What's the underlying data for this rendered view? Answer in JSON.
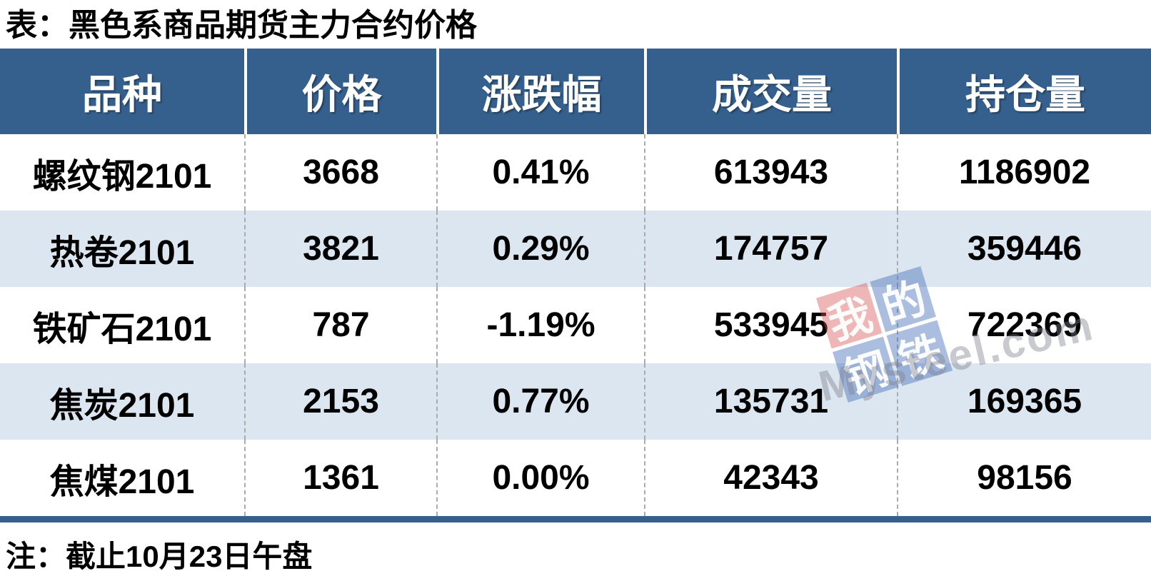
{
  "title": "表：黑色系商品期货主力合约价格",
  "note": "注：截止10月23日午盘",
  "colors": {
    "header_bg": "#35608E",
    "row_alt_bg": "#DCE6F1",
    "up_red": "#C00000",
    "down_green": "#548235",
    "divider_dash": "#ABABAB",
    "bottom_bar": "#35608E"
  },
  "watermark": {
    "tiles": [
      {
        "char": "我",
        "color": "red"
      },
      {
        "char": "的",
        "color": "blue"
      },
      {
        "char": "钢",
        "color": "blue"
      },
      {
        "char": "铁",
        "color": "blue"
      }
    ],
    "text": "Mysteel.com"
  },
  "chart_data": {
    "type": "table",
    "title": "表：黑色系商品期货主力合约价格",
    "columns": [
      "品种",
      "价格",
      "涨跌幅",
      "成交量",
      "持仓量"
    ],
    "rows": [
      [
        "螺纹钢2101",
        "3668",
        "0.41%",
        "613943",
        "1186902"
      ],
      [
        "热卷2101",
        "3821",
        "0.29%",
        "174757",
        "359446"
      ],
      [
        "铁矿石2101",
        "787",
        "-1.19%",
        "533945",
        "722369"
      ],
      [
        "焦炭2101",
        "2153",
        "0.77%",
        "135731",
        "169365"
      ],
      [
        "焦煤2101",
        "1361",
        "0.00%",
        "42343",
        "98156"
      ]
    ],
    "change_colors": [
      "red",
      "red",
      "green",
      "red",
      "black"
    ],
    "note": "注：截止10月23日午盘"
  }
}
